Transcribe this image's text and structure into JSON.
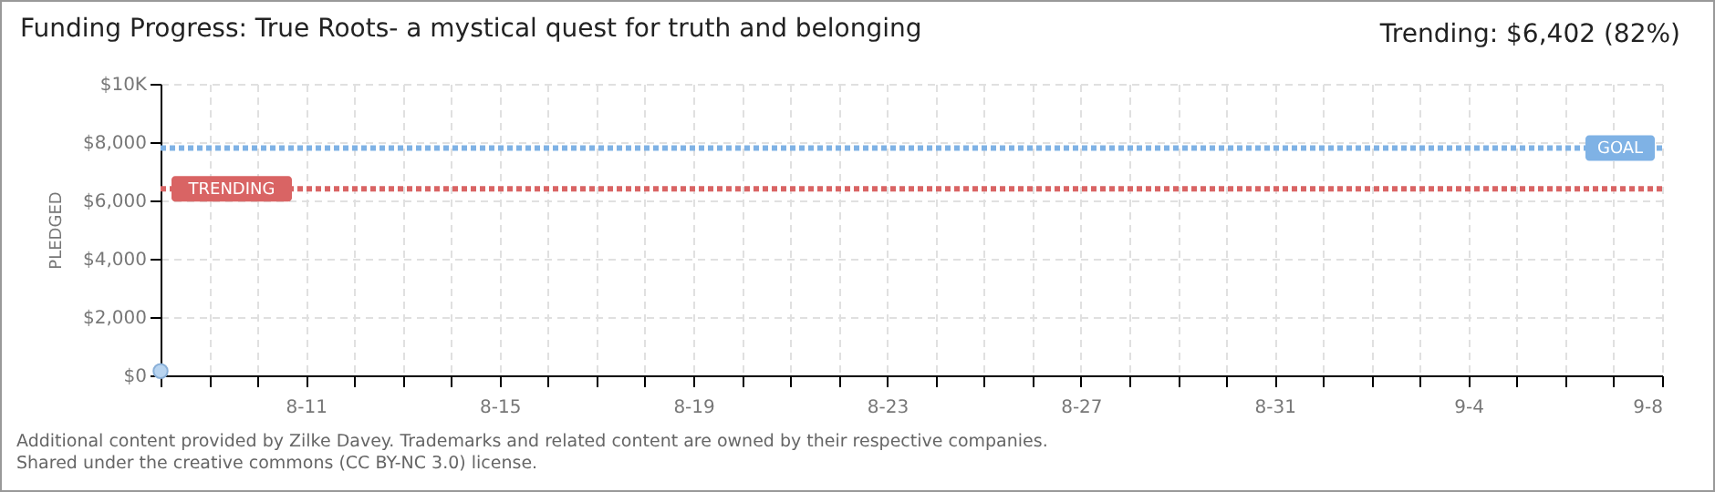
{
  "chart_data": {
    "type": "line",
    "title": "Funding Progress: True Roots- a mystical quest for truth and belonging",
    "subtitle": "Trending: $6,402 (82%)",
    "ylabel": "PLEDGED",
    "x": [
      "--08-08"
    ],
    "series": [
      {
        "color": "#b8d4f0",
        "values": [
          150
        ]
      }
    ],
    "marker": "circle",
    "grid": true,
    "xlim": [
      "--08-08",
      "--09-08"
    ],
    "xticks": [
      {
        "value": "--08-08",
        "label": null
      },
      {
        "value": "--08-09",
        "label": null
      },
      {
        "value": "--08-10",
        "label": null
      },
      {
        "value": "--08-11",
        "label": "8-11"
      },
      {
        "value": "--08-12",
        "label": null
      },
      {
        "value": "--08-13",
        "label": null
      },
      {
        "value": "--08-14",
        "label": null
      },
      {
        "value": "--08-15",
        "label": "8-15"
      },
      {
        "value": "--08-16",
        "label": null
      },
      {
        "value": "--08-17",
        "label": null
      },
      {
        "value": "--08-18",
        "label": null
      },
      {
        "value": "--08-19",
        "label": "8-19"
      },
      {
        "value": "--08-20",
        "label": null
      },
      {
        "value": "--08-21",
        "label": null
      },
      {
        "value": "--08-22",
        "label": null
      },
      {
        "value": "--08-23",
        "label": "8-23"
      },
      {
        "value": "--08-24",
        "label": null
      },
      {
        "value": "--08-25",
        "label": null
      },
      {
        "value": "--08-26",
        "label": null
      },
      {
        "value": "--08-27",
        "label": "8-27"
      },
      {
        "value": "--08-28",
        "label": null
      },
      {
        "value": "--08-29",
        "label": null
      },
      {
        "value": "--08-30",
        "label": null
      },
      {
        "value": "--08-31",
        "label": "8-31"
      },
      {
        "value": "--09-01",
        "label": null
      },
      {
        "value": "--09-02",
        "label": null
      },
      {
        "value": "--09-03",
        "label": null
      },
      {
        "value": "--09-04",
        "label": "9-4"
      },
      {
        "value": "--09-05",
        "label": null
      },
      {
        "value": "--09-06",
        "label": null
      },
      {
        "value": "--09-07",
        "label": null
      },
      {
        "value": "--09-08",
        "label": "9-8"
      }
    ],
    "ylim": [
      0,
      10000
    ],
    "yticks": [
      {
        "value": 0,
        "label": "$0"
      },
      {
        "value": 2000,
        "label": "$2,000"
      },
      {
        "value": 4000,
        "label": "$4,000"
      },
      {
        "value": 6000,
        "label": "$6,000"
      },
      {
        "value": 8000,
        "label": "$8,000"
      },
      {
        "value": 10000,
        "label": "$10K"
      }
    ],
    "ref_lines": [
      {
        "axis": "y",
        "value": 7800,
        "label": "GOAL",
        "color": "#7fb2e5",
        "line_style": "dotted"
      },
      {
        "axis": "y",
        "value": 6402,
        "label": "TRENDING",
        "color": "#d96464",
        "line_style": "dotted"
      }
    ],
    "annotations": [
      "Additional content provided by Zilke Davey. Trademarks and related content are owned by their respective companies.",
      "Shared under the creative commons (CC BY-NC 3.0) license."
    ]
  }
}
